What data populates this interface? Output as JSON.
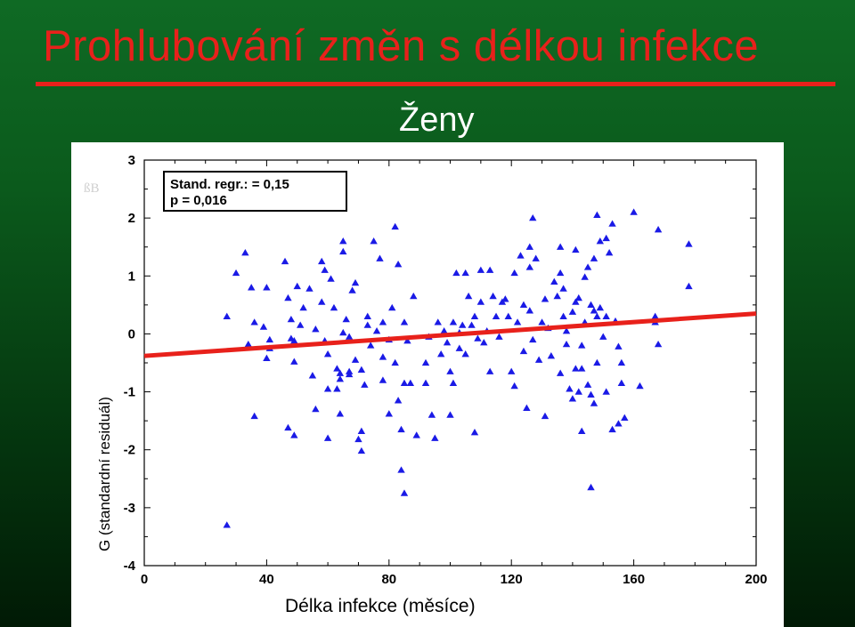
{
  "slide": {
    "title": "Prohlubování změn s délkou infekce",
    "subtitle": "Ženy",
    "corner_mark": "ßB"
  },
  "stats_box": {
    "line1_prefix": "Stand. regr.: ",
    "line1_symbol": "",
    "line1_suffix": " = 0,15",
    "line2": "p = 0,016"
  },
  "colors": {
    "title": "#e8211b",
    "points": "#1a1ae6",
    "regression": "#e8211b",
    "background_top": "#0f6a24",
    "background_bottom": "#011a05"
  },
  "chart_data": {
    "type": "scatter",
    "title": "Ženy",
    "xlabel": "Délka infekce (měsíce)",
    "ylabel": "G (standardní residuál)",
    "xlim": [
      0,
      200
    ],
    "ylim": [
      -4,
      3
    ],
    "xticks": [
      0,
      40,
      80,
      120,
      160,
      200
    ],
    "yticks": [
      3,
      2,
      1,
      0,
      -1,
      -2,
      -3,
      -4
    ],
    "marker": "triangle",
    "grid": false,
    "regression": {
      "x": [
        0,
        200
      ],
      "y": [
        -0.38,
        0.35
      ]
    },
    "points": [
      [
        27,
        -3.3
      ],
      [
        27,
        0.3
      ],
      [
        30,
        1.05
      ],
      [
        33,
        1.4
      ],
      [
        34,
        -0.18
      ],
      [
        35,
        0.8
      ],
      [
        36,
        -1.42
      ],
      [
        36,
        0.2
      ],
      [
        39,
        0.12
      ],
      [
        40,
        0.8
      ],
      [
        40,
        -0.42
      ],
      [
        41,
        -0.1
      ],
      [
        41,
        -0.25
      ],
      [
        46,
        1.25
      ],
      [
        47,
        0.62
      ],
      [
        47,
        -1.62
      ],
      [
        48,
        -0.08
      ],
      [
        48,
        0.25
      ],
      [
        49,
        -0.12
      ],
      [
        49,
        -0.48
      ],
      [
        49,
        -1.75
      ],
      [
        50,
        0.82
      ],
      [
        51,
        0.15
      ],
      [
        52,
        0.45
      ],
      [
        54,
        0.78
      ],
      [
        55,
        -0.72
      ],
      [
        56,
        -1.3
      ],
      [
        56,
        0.08
      ],
      [
        58,
        1.25
      ],
      [
        58,
        0.55
      ],
      [
        59,
        1.1
      ],
      [
        59,
        -0.12
      ],
      [
        60,
        -0.35
      ],
      [
        60,
        -0.95
      ],
      [
        60,
        -1.8
      ],
      [
        61,
        0.95
      ],
      [
        62,
        0.45
      ],
      [
        63,
        -0.6
      ],
      [
        63,
        -0.95
      ],
      [
        64,
        -1.38
      ],
      [
        64,
        -0.78
      ],
      [
        64,
        -0.68
      ],
      [
        65,
        1.42
      ],
      [
        65,
        1.6
      ],
      [
        65,
        0.02
      ],
      [
        66,
        0.25
      ],
      [
        67,
        -0.05
      ],
      [
        67,
        -0.7
      ],
      [
        67,
        -0.65
      ],
      [
        68,
        0.75
      ],
      [
        69,
        0.88
      ],
      [
        69,
        -0.45
      ],
      [
        70,
        -1.82
      ],
      [
        71,
        -1.68
      ],
      [
        71,
        -2.02
      ],
      [
        71,
        -0.62
      ],
      [
        72,
        -0.88
      ],
      [
        73,
        0.3
      ],
      [
        73,
        0.15
      ],
      [
        74,
        -0.2
      ],
      [
        75,
        1.6
      ],
      [
        76,
        0.05
      ],
      [
        77,
        1.3
      ],
      [
        78,
        0.2
      ],
      [
        78,
        -0.4
      ],
      [
        78,
        -0.8
      ],
      [
        80,
        -0.1
      ],
      [
        80,
        -1.38
      ],
      [
        81,
        0.45
      ],
      [
        82,
        1.85
      ],
      [
        82,
        -0.5
      ],
      [
        83,
        1.2
      ],
      [
        83,
        -1.15
      ],
      [
        84,
        -2.35
      ],
      [
        84,
        -1.65
      ],
      [
        85,
        -2.75
      ],
      [
        85,
        -0.85
      ],
      [
        85,
        0.2
      ],
      [
        86,
        -0.12
      ],
      [
        87,
        -0.85
      ],
      [
        88,
        0.65
      ],
      [
        89,
        -1.75
      ],
      [
        92,
        -0.5
      ],
      [
        92,
        -0.85
      ],
      [
        93,
        -0.05
      ],
      [
        94,
        -1.4
      ],
      [
        95,
        -1.8
      ],
      [
        96,
        0.2
      ],
      [
        97,
        -0.35
      ],
      [
        98,
        0.05
      ],
      [
        99,
        -0.15
      ],
      [
        100,
        -1.4
      ],
      [
        100,
        -0.65
      ],
      [
        101,
        -0.85
      ],
      [
        101,
        0.2
      ],
      [
        102,
        1.05
      ],
      [
        103,
        -0.25
      ],
      [
        103,
        0.02
      ],
      [
        104,
        0.15
      ],
      [
        105,
        -0.35
      ],
      [
        105,
        1.05
      ],
      [
        106,
        0.65
      ],
      [
        107,
        0.15
      ],
      [
        108,
        -1.7
      ],
      [
        108,
        0.3
      ],
      [
        109,
        -0.08
      ],
      [
        110,
        0.55
      ],
      [
        110,
        1.1
      ],
      [
        111,
        -0.15
      ],
      [
        112,
        0.05
      ],
      [
        113,
        -0.65
      ],
      [
        113,
        1.1
      ],
      [
        114,
        0.65
      ],
      [
        115,
        0.3
      ],
      [
        116,
        -0.05
      ],
      [
        117,
        0.55
      ],
      [
        118,
        0.6
      ],
      [
        119,
        0.3
      ],
      [
        120,
        -0.65
      ],
      [
        121,
        -0.9
      ],
      [
        121,
        1.05
      ],
      [
        122,
        0.2
      ],
      [
        123,
        1.35
      ],
      [
        124,
        0.5
      ],
      [
        124,
        -0.3
      ],
      [
        125,
        -1.28
      ],
      [
        126,
        0.4
      ],
      [
        126,
        1.15
      ],
      [
        126,
        1.5
      ],
      [
        127,
        -0.1
      ],
      [
        127,
        2.0
      ],
      [
        128,
        1.3
      ],
      [
        129,
        -0.45
      ],
      [
        130,
        0.2
      ],
      [
        131,
        -1.42
      ],
      [
        131,
        0.6
      ],
      [
        132,
        0.1
      ],
      [
        133,
        -0.38
      ],
      [
        134,
        0.9
      ],
      [
        135,
        0.65
      ],
      [
        136,
        -0.68
      ],
      [
        136,
        1.05
      ],
      [
        136,
        1.5
      ],
      [
        137,
        0.3
      ],
      [
        137,
        0.78
      ],
      [
        138,
        -0.18
      ],
      [
        138,
        0.05
      ],
      [
        139,
        -0.95
      ],
      [
        140,
        -1.12
      ],
      [
        140,
        0.38
      ],
      [
        141,
        -0.6
      ],
      [
        141,
        0.55
      ],
      [
        141,
        1.45
      ],
      [
        142,
        0.62
      ],
      [
        142,
        -1.0
      ],
      [
        143,
        -0.2
      ],
      [
        143,
        -1.68
      ],
      [
        143,
        -0.6
      ],
      [
        144,
        0.2
      ],
      [
        144,
        0.98
      ],
      [
        145,
        -0.88
      ],
      [
        145,
        1.15
      ],
      [
        146,
        0.5
      ],
      [
        146,
        -1.05
      ],
      [
        146,
        -2.65
      ],
      [
        147,
        1.3
      ],
      [
        147,
        0.4
      ],
      [
        147,
        -1.2
      ],
      [
        148,
        2.05
      ],
      [
        148,
        0.3
      ],
      [
        148,
        -0.5
      ],
      [
        149,
        1.6
      ],
      [
        149,
        0.45
      ],
      [
        150,
        -0.05
      ],
      [
        151,
        1.65
      ],
      [
        151,
        0.3
      ],
      [
        151,
        -1.0
      ],
      [
        152,
        1.4
      ],
      [
        153,
        1.9
      ],
      [
        153,
        -1.65
      ],
      [
        154,
        0.22
      ],
      [
        155,
        -0.22
      ],
      [
        155,
        -1.55
      ],
      [
        156,
        -0.5
      ],
      [
        156,
        -0.85
      ],
      [
        157,
        -1.45
      ],
      [
        160,
        2.1
      ],
      [
        162,
        -0.9
      ],
      [
        167,
        0.3
      ],
      [
        167,
        0.2
      ],
      [
        168,
        1.8
      ],
      [
        168,
        -0.18
      ],
      [
        178,
        1.55
      ],
      [
        178,
        0.82
      ]
    ]
  }
}
